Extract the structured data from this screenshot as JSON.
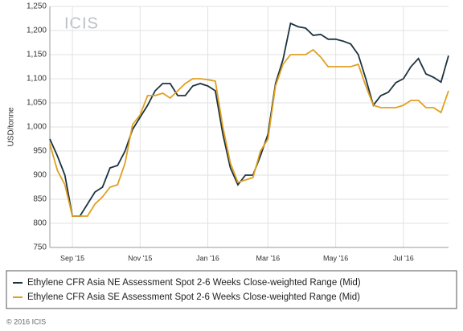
{
  "chart_data": {
    "type": "line",
    "ylabel": "USD/tonne",
    "logo": "ICIS",
    "footer": "© 2016 ICIS",
    "categories": [
      null,
      null,
      null,
      "Sep '15",
      null,
      null,
      null,
      null,
      null,
      null,
      null,
      null,
      "Nov '15",
      null,
      null,
      null,
      null,
      null,
      null,
      null,
      null,
      "Jan '16",
      null,
      null,
      null,
      null,
      null,
      null,
      null,
      "Mar '16",
      null,
      null,
      null,
      null,
      null,
      null,
      null,
      null,
      "May '16",
      null,
      null,
      null,
      null,
      null,
      null,
      null,
      null,
      "Jul '16",
      null,
      null,
      null,
      null,
      null,
      null
    ],
    "series": [
      {
        "name": "Ethylene CFR Asia NE Assessment Spot 2-6 Weeks Close-weighted Range (Mid)",
        "color": "#1c3340",
        "values": [
          975,
          940,
          900,
          815,
          815,
          840,
          865,
          875,
          915,
          920,
          950,
          995,
          1020,
          1045,
          1075,
          1090,
          1090,
          1065,
          1065,
          1085,
          1090,
          1085,
          1075,
          985,
          915,
          880,
          900,
          900,
          940,
          985,
          1090,
          1140,
          1215,
          1208,
          1205,
          1190,
          1192,
          1182,
          1182,
          1178,
          1172,
          1150,
          1100,
          1045,
          1065,
          1072,
          1092,
          1100,
          1125,
          1142,
          1110,
          1103,
          1093,
          1148
        ]
      },
      {
        "name": "Ethylene CFR Asia SE Assessment Spot 2-6 Weeks Close-weighted Range (Mid)",
        "color": "#e0a020",
        "values": [
          965,
          910,
          880,
          815,
          815,
          815,
          840,
          855,
          875,
          880,
          925,
          1005,
          1025,
          1065,
          1065,
          1070,
          1060,
          1075,
          1090,
          1100,
          1100,
          1098,
          1095,
          1000,
          925,
          885,
          890,
          895,
          950,
          975,
          1085,
          1130,
          1150,
          1150,
          1150,
          1160,
          1145,
          1125,
          1125,
          1125,
          1125,
          1130,
          1085,
          1045,
          1040,
          1040,
          1040,
          1045,
          1055,
          1055,
          1040,
          1040,
          1030,
          1075
        ]
      }
    ],
    "ylim": [
      750,
      1250
    ],
    "yticks": [
      750,
      800,
      850,
      900,
      950,
      {
        "value": 1000,
        "label": "1,000"
      },
      {
        "value": 1050,
        "label": "1,050"
      },
      {
        "value": 1100,
        "label": "1,100"
      },
      {
        "value": 1150,
        "label": "1,150"
      },
      {
        "value": 1200,
        "label": "1,200"
      },
      {
        "value": 1250,
        "label": "1,250"
      }
    ],
    "grid": true
  }
}
